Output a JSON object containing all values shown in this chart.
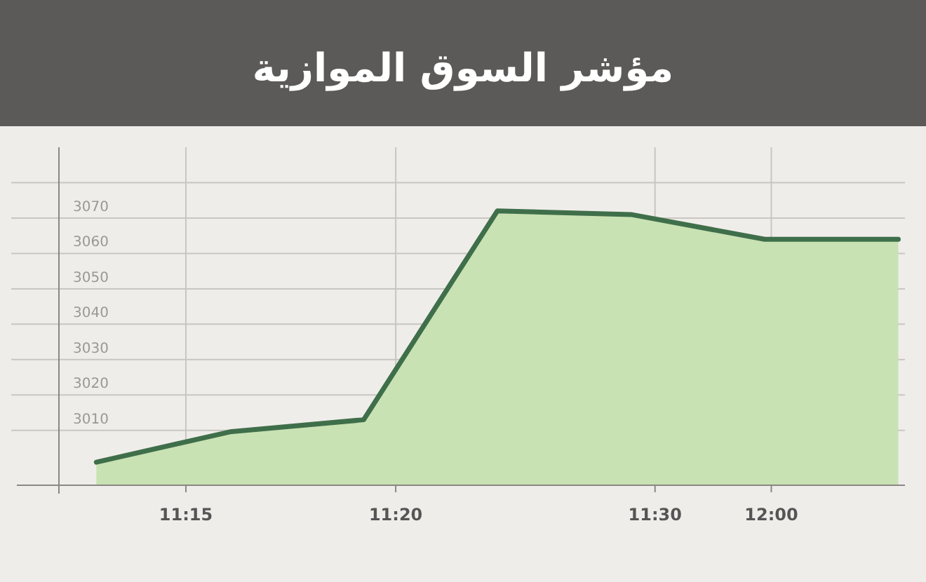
{
  "chart_data": {
    "type": "area",
    "title": "مؤشر السوق الموازية",
    "categories": [
      null,
      null,
      null,
      null,
      null,
      null,
      null
    ],
    "annotations": [
      "11:15",
      "11:20",
      "11:30",
      "12:00"
    ],
    "series": [
      {
        "color": "#3f6f4a",
        "values": [
          3001,
          3009.6,
          3013,
          3072,
          3071,
          3064,
          3064
        ]
      }
    ],
    "ylim": [
      2994.5,
      3090
    ],
    "yticks": [
      3010,
      3020,
      3030,
      3040,
      3050,
      3060,
      3070,
      {
        "value": 3080,
        "label": null
      }
    ],
    "grid": true
  }
}
